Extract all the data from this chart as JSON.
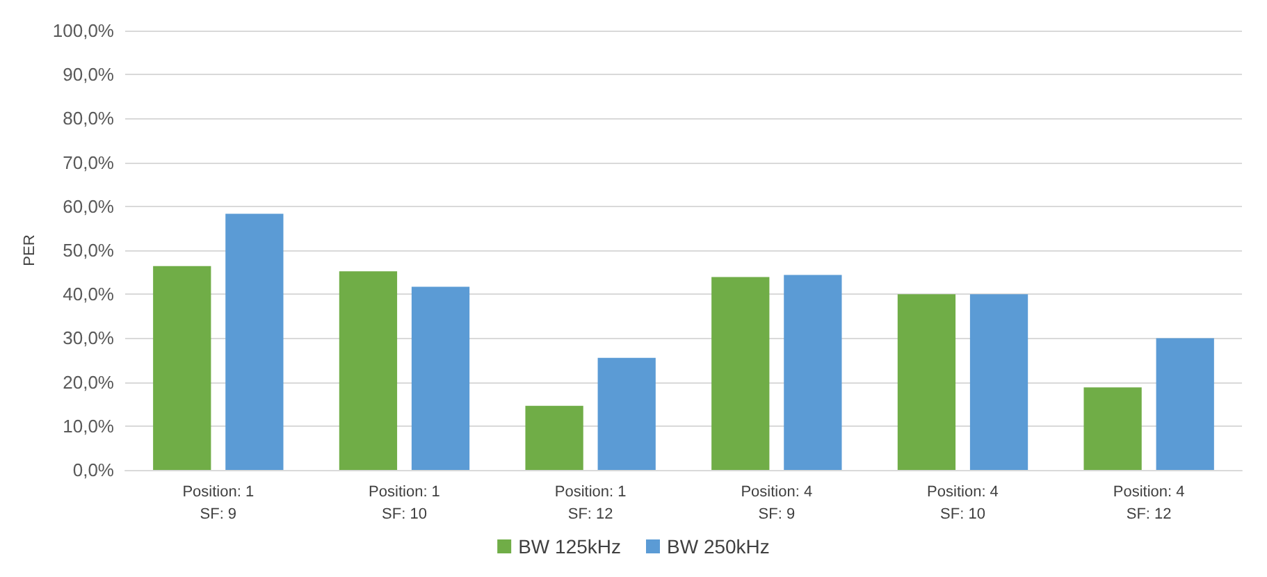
{
  "chart_data": {
    "type": "bar",
    "ylabel": "PER",
    "categories": [
      "Position: 1\nSF: 9",
      "Position: 1\nSF: 10",
      "Position: 1\nSF: 12",
      "Position: 4\nSF: 9",
      "Position: 4\nSF: 10",
      "Position: 4\nSF: 12"
    ],
    "series": [
      {
        "name": "BW 125kHz",
        "color": "#70ad47",
        "values": [
          46.4,
          45.2,
          14.6,
          43.9,
          40.0,
          18.8
        ]
      },
      {
        "name": "BW 250kHz",
        "color": "#5b9bd5",
        "values": [
          58.3,
          41.7,
          25.5,
          44.4,
          40.0,
          30.0
        ]
      }
    ],
    "ylim": [
      0,
      100
    ],
    "yticks": [
      {
        "value": 0,
        "label": "0,0%"
      },
      {
        "value": 10,
        "label": "10,0%"
      },
      {
        "value": 20,
        "label": "20,0%"
      },
      {
        "value": 30,
        "label": "30,0%"
      },
      {
        "value": 40,
        "label": "40,0%"
      },
      {
        "value": 50,
        "label": "50,0%"
      },
      {
        "value": 60,
        "label": "60,0%"
      },
      {
        "value": 70,
        "label": "70,0%"
      },
      {
        "value": 80,
        "label": "80,0%"
      },
      {
        "value": 90,
        "label": "90,0%"
      },
      {
        "value": 100,
        "label": "100,0%"
      }
    ],
    "grid": true,
    "legend": "bottom"
  }
}
